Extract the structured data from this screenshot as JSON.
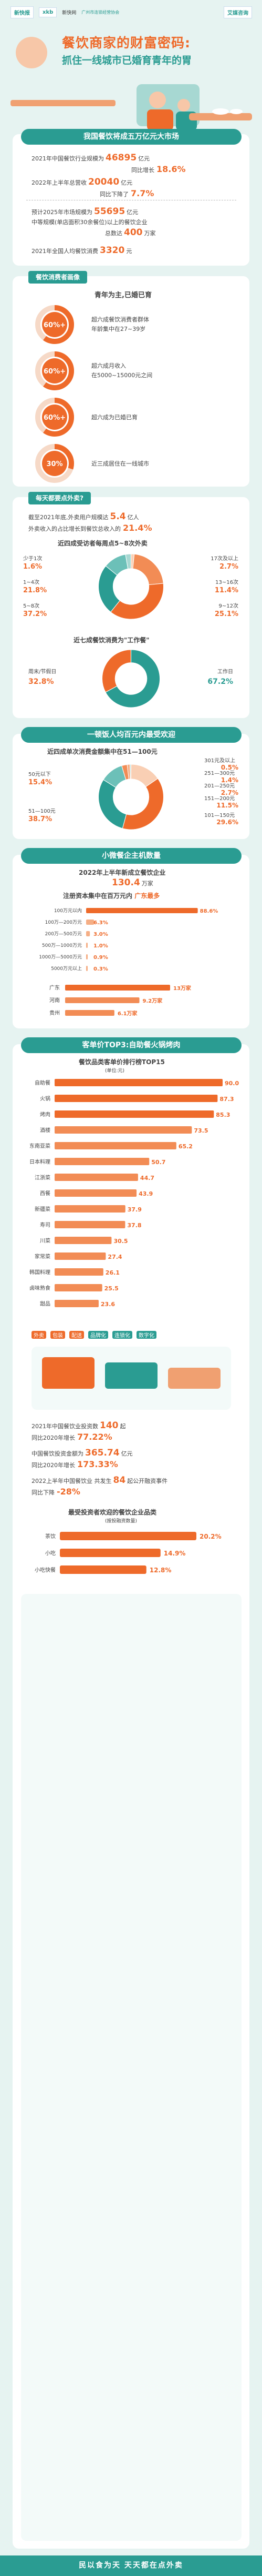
{
  "header": {
    "logo1": "新快报",
    "logo2": "xkb",
    "logo3": "新快网",
    "logo4": "广州市连锁经营协会",
    "logo5": "艾媒咨询"
  },
  "hero": {
    "title": "餐饮商家的财富密码:",
    "subtitle": "抓住一线城市已婚育青年的胃"
  },
  "s1": {
    "banner": "我国餐饮将成五万亿元大市场",
    "l1_pre": "2021年中国餐饮行业规模为",
    "l1_val": "46895",
    "l1_unit": "亿元",
    "l1_sub": "同比增长",
    "l1_pct": "18.6%",
    "l2_pre": "2022年上半年总营收",
    "l2_val": "20040",
    "l2_unit": "亿元",
    "l2_sub": "同比下降了",
    "l2_pct": "7.7%",
    "l3_pre": "预计2025年市场规模为",
    "l3_val": "55695",
    "l3_unit": "亿元",
    "l4_pre": "中等规模(单店面积30余餐位)以上的餐饮企业",
    "l4_mid": "总数达",
    "l4_val": "400",
    "l4_unit": "万家",
    "l5_pre": "2021年全国人均餐饮消费",
    "l5_val": "3320",
    "l5_unit": "元"
  },
  "s2": {
    "title": "餐饮消费者画像",
    "sub": "青年为主,已婚已育",
    "donuts": [
      {
        "pct": "60%+",
        "value": 60,
        "text1": "超六成餐饮消费者群体",
        "text2": "年龄集中在27~39岁"
      },
      {
        "pct": "60%+",
        "value": 60,
        "text1": "超六成月收入",
        "text2": "在5000~15000元之间"
      },
      {
        "pct": "60%+",
        "value": 60,
        "text1": "超六成为已婚已育",
        "text2": ""
      },
      {
        "pct": "30%",
        "value": 30,
        "text1": "近三成居住在一线城市",
        "text2": ""
      }
    ]
  },
  "s3": {
    "title": "每天都要点外卖?",
    "l1": "截至2021年底,外卖用户规模达",
    "l1_val": "5.4",
    "l1_unit": "亿人",
    "l2": "外卖收入的占比增长到餐饮总收入的",
    "l2_pct": "21.4%",
    "freq_title": "近四成受访者每周点5~8次外卖",
    "freq_labels": [
      "少于1次",
      "1~4次",
      "5~8次",
      "17次及以上",
      "13~16次",
      "9~12次"
    ],
    "freq_vals": [
      "1.6%",
      "21.8%",
      "37.2%",
      "2.7%",
      "11.4%",
      "25.1%"
    ],
    "work_title": "近七成餐饮消费为\"工作餐\"",
    "work_labels": [
      "周末/节假日",
      "工作日"
    ],
    "work_vals": [
      "32.8%",
      "67.2%"
    ]
  },
  "s4": {
    "banner": "一顿饭人均百元内最受欢迎",
    "title": "近四成单次消费金额集中在51—100元",
    "labels": [
      "50元以下",
      "51—100元",
      "301元及以上",
      "251—300元",
      "201—250元",
      "151—200元",
      "101—150元"
    ],
    "vals": [
      "15.4%",
      "38.7%",
      "0.5%",
      "1.4%",
      "2.7%",
      "11.5%",
      "29.6%"
    ]
  },
  "s5": {
    "banner": "小微餐企主机数量",
    "title": "2022年上半年新成立餐饮企业",
    "count": "130.4",
    "count_unit": "万家",
    "capital_title": "注册资本集中在百万元内",
    "province_title": "广东最多",
    "capital_labels": [
      "100万元以内",
      "100万—200万元",
      "200万—500万元",
      "500万—1000万元",
      "1000万—5000万元",
      "5000万元以上"
    ],
    "capital_vals": [
      "88.6%",
      "6.3%",
      "3.0%",
      "1.0%",
      "0.9%",
      "0.3%"
    ],
    "prov_labels": [
      "广东",
      "河南",
      "贵州"
    ],
    "prov_vals": [
      "13万家",
      "9.2万家",
      "6.1万家"
    ]
  },
  "s6": {
    "banner": "客单价TOP3:自助餐火锅烤肉",
    "title": "餐饮品类客单价排行榜TOP15",
    "unit": "(单位:元)",
    "cats": [
      "自助餐",
      "火锅",
      "烤肉",
      "酒楼",
      "东南亚菜",
      "日本料理",
      "江浙菜",
      "西餐",
      "新疆菜",
      "寿司",
      "川菜",
      "家常菜",
      "韩国料理",
      "卤味熟食",
      "甜品"
    ],
    "vals": [
      90.0,
      87.3,
      85.3,
      73.5,
      65.2,
      50.7,
      44.7,
      43.9,
      37.9,
      37.8,
      30.5,
      27.4,
      26.1,
      25.5,
      23.6
    ],
    "trend1": "外卖",
    "trend2": "包装",
    "trend3": "配送",
    "trend4": "品牌化",
    "trend5": "连锁化",
    "trend6": "数字化",
    "t1_pre": "2021年中国餐饮业投资数",
    "t1_val": "140",
    "t1_unit": "起",
    "t1_sub": "同比2020年增长",
    "t1_pct": "77.22%",
    "t2_pre": "中国餐饮投资金额为",
    "t2_val": "365.74",
    "t2_unit": "亿元",
    "t2_sub": "同比2020年增长",
    "t2_pct": "173.33%",
    "t3_pre": "2022上半年中国餐饮业",
    "t3_mid": "共发生",
    "t3_val": "84",
    "t3_unit": "起公开融资事件",
    "t3_sub": "同比下降",
    "t3_pct": "-28%",
    "inv_title": "最受投资者欢迎的餐饮企业品类",
    "inv_unit": "(按投融资数量)",
    "inv_labels": [
      "茶饮",
      "小吃",
      "小吃快餐"
    ],
    "inv_vals": [
      20.2,
      14.9,
      12.8
    ]
  },
  "footer": "民以食为天 天天都在点外卖",
  "chart_data": [
    {
      "type": "pie",
      "title": "近四成受访者每周点5~8次外卖",
      "categories": [
        "少于1次",
        "1~4次",
        "5~8次",
        "9~12次",
        "13~16次",
        "17次及以上"
      ],
      "values": [
        1.6,
        21.8,
        37.2,
        25.1,
        11.4,
        2.7
      ]
    },
    {
      "type": "pie",
      "title": "近七成餐饮消费为\"工作餐\"",
      "categories": [
        "工作日",
        "周末/节假日"
      ],
      "values": [
        67.2,
        32.8
      ]
    },
    {
      "type": "pie",
      "title": "近四成单次消费金额集中在51—100元",
      "categories": [
        "50元以下",
        "51—100元",
        "101—150元",
        "151—200元",
        "201—250元",
        "251—300元",
        "301元及以上"
      ],
      "values": [
        15.4,
        38.7,
        29.6,
        11.5,
        2.7,
        1.4,
        0.5
      ]
    },
    {
      "type": "bar",
      "title": "注册资本集中在百万元内",
      "categories": [
        "100万元以内",
        "100万—200万元",
        "200万—500万元",
        "500万—1000万元",
        "1000万—5000万元",
        "5000万元以上"
      ],
      "values": [
        88.6,
        6.3,
        3.0,
        1.0,
        0.9,
        0.3
      ]
    },
    {
      "type": "bar",
      "title": "广东最多",
      "categories": [
        "广东",
        "河南",
        "贵州"
      ],
      "values": [
        13,
        9.2,
        6.1
      ],
      "ylabel": "万家"
    },
    {
      "type": "bar",
      "title": "餐饮品类客单价排行榜TOP15",
      "categories": [
        "自助餐",
        "火锅",
        "烤肉",
        "酒楼",
        "东南亚菜",
        "日本料理",
        "江浙菜",
        "西餐",
        "新疆菜",
        "寿司",
        "川菜",
        "家常菜",
        "韩国料理",
        "卤味熟食",
        "甜品"
      ],
      "values": [
        90.0,
        87.3,
        85.3,
        73.5,
        65.2,
        50.7,
        44.7,
        43.9,
        37.9,
        37.8,
        30.5,
        27.4,
        26.1,
        25.5,
        23.6
      ],
      "ylabel": "单位:元"
    },
    {
      "type": "bar",
      "title": "最受投资者欢迎的餐饮企业品类",
      "categories": [
        "茶饮",
        "小吃",
        "小吃快餐"
      ],
      "values": [
        20.2,
        14.9,
        12.8
      ]
    }
  ]
}
